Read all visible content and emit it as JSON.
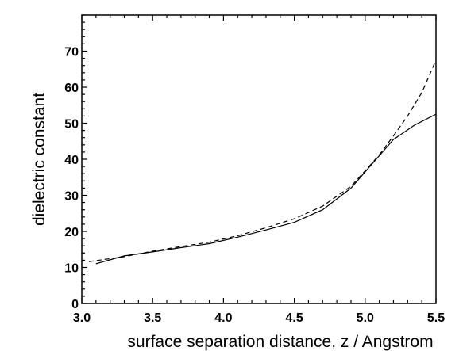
{
  "chart_data": {
    "type": "line",
    "title": "",
    "xlabel": "surface separation distance, z / Angstrom",
    "ylabel": "dielectric constant",
    "xlim": [
      3.0,
      5.5
    ],
    "ylim": [
      0,
      80
    ],
    "x_ticks": [
      "3.0",
      "3.5",
      "4.0",
      "4.5",
      "5.0",
      "5.5"
    ],
    "y_ticks": [
      "0",
      "10",
      "20",
      "30",
      "40",
      "50",
      "60",
      "70"
    ],
    "grid": false,
    "legend": "none",
    "series": [
      {
        "style": "solid",
        "x": [
          3.1,
          3.3,
          3.5,
          3.7,
          3.9,
          4.1,
          4.3,
          4.5,
          4.7,
          4.9,
          5.0,
          5.1,
          5.2,
          5.35,
          5.5
        ],
        "y": [
          11.0,
          13.2,
          14.3,
          15.5,
          16.6,
          18.4,
          20.4,
          22.5,
          26.0,
          32.0,
          36.5,
          41.0,
          45.5,
          49.5,
          52.5
        ]
      },
      {
        "style": "dashed",
        "x": [
          3.05,
          3.3,
          3.5,
          3.7,
          3.9,
          4.1,
          4.3,
          4.5,
          4.7,
          4.9,
          5.0,
          5.1,
          5.2,
          5.3,
          5.4,
          5.5
        ],
        "y": [
          11.6,
          13.0,
          14.5,
          15.8,
          17.0,
          18.8,
          21.0,
          23.5,
          27.0,
          32.5,
          36.8,
          41.2,
          46.5,
          52.0,
          58.5,
          67.5
        ]
      }
    ]
  }
}
